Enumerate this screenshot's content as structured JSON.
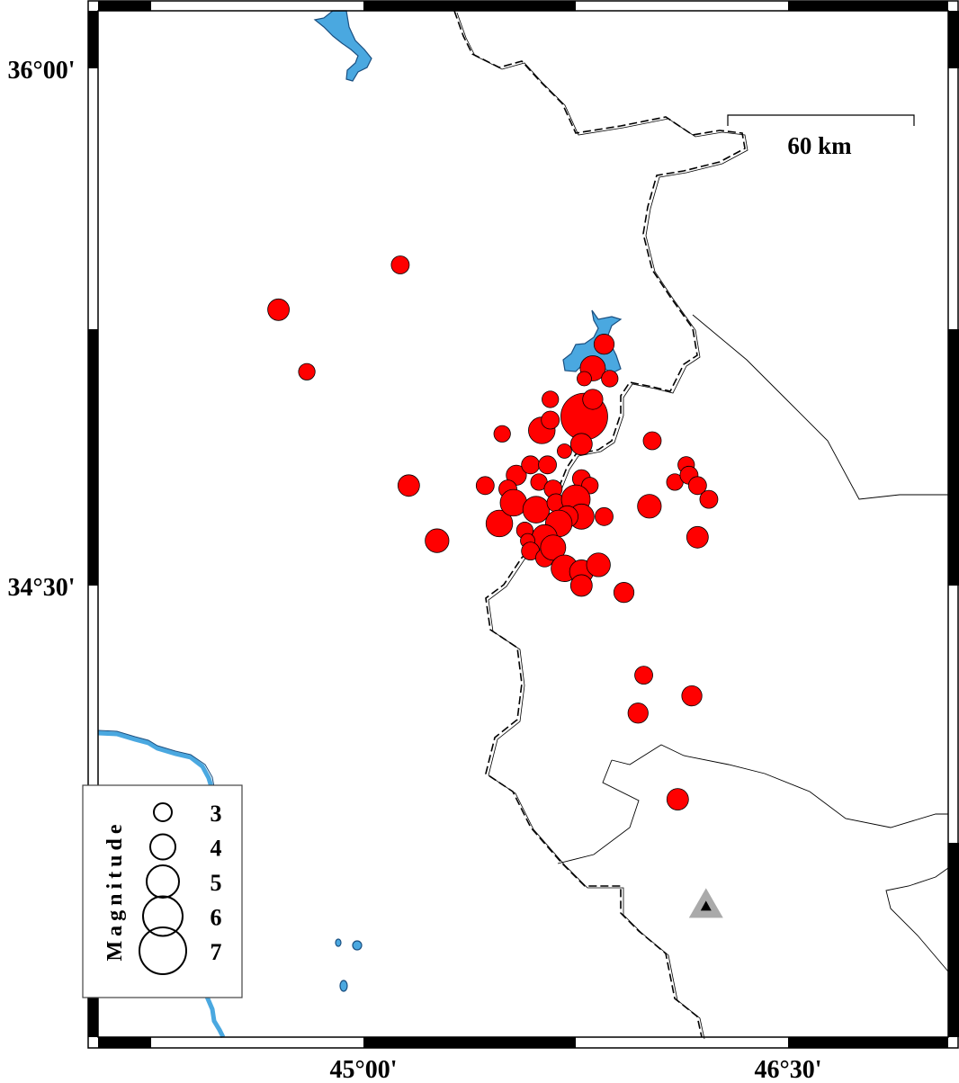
{
  "map": {
    "lon_range": [
      44.0625,
      47.0
    ],
    "lat_range": [
      33.19,
      36.17
    ],
    "axis_ticks": {
      "lon": [
        {
          "value": 45.0,
          "label": "45°00'"
        },
        {
          "value": 46.5,
          "label": "46°30'"
        }
      ],
      "lat": [
        {
          "value": 36.0,
          "label": "36°00'"
        },
        {
          "value": 34.5,
          "label": "34°30'"
        }
      ]
    },
    "scale_bar": {
      "label": "60 km",
      "length_km": 60
    },
    "colors": {
      "event_fill": "#ff0000",
      "water": "#4aa8e0",
      "station": "#aaaaaa"
    },
    "legend": {
      "title": "Magnitude",
      "entries": [
        {
          "mag": 3,
          "label": "3"
        },
        {
          "mag": 4,
          "label": "4"
        },
        {
          "mag": 5,
          "label": "5"
        },
        {
          "mag": 6,
          "label": "6"
        },
        {
          "mag": 7,
          "label": "7"
        }
      ]
    },
    "station": {
      "lon": 46.21,
      "lat": 33.57,
      "icon": "triangle-icon"
    },
    "events": [
      {
        "lon": 45.13,
        "lat": 35.43,
        "mag": 3.0
      },
      {
        "lon": 44.7,
        "lat": 35.3,
        "mag": 3.5
      },
      {
        "lon": 44.8,
        "lat": 35.12,
        "mag": 2.8
      },
      {
        "lon": 45.16,
        "lat": 34.79,
        "mag": 3.5
      },
      {
        "lon": 45.26,
        "lat": 34.63,
        "mag": 3.8
      },
      {
        "lon": 45.49,
        "lat": 34.94,
        "mag": 2.8
      },
      {
        "lon": 45.43,
        "lat": 34.79,
        "mag": 3.0
      },
      {
        "lon": 45.48,
        "lat": 34.68,
        "mag": 4.2
      },
      {
        "lon": 45.63,
        "lat": 34.95,
        "mag": 4.2
      },
      {
        "lon": 45.66,
        "lat": 35.04,
        "mag": 2.8
      },
      {
        "lon": 45.66,
        "lat": 34.98,
        "mag": 3.0
      },
      {
        "lon": 45.54,
        "lat": 34.82,
        "mag": 3.3
      },
      {
        "lon": 45.51,
        "lat": 34.78,
        "mag": 3.0
      },
      {
        "lon": 45.53,
        "lat": 34.74,
        "mag": 4.2
      },
      {
        "lon": 45.59,
        "lat": 34.85,
        "mag": 3.0
      },
      {
        "lon": 45.65,
        "lat": 34.85,
        "mag": 3.0
      },
      {
        "lon": 45.62,
        "lat": 34.8,
        "mag": 2.8
      },
      {
        "lon": 45.67,
        "lat": 34.78,
        "mag": 3.0
      },
      {
        "lon": 45.61,
        "lat": 34.72,
        "mag": 4.2
      },
      {
        "lon": 45.68,
        "lat": 34.74,
        "mag": 3.0
      },
      {
        "lon": 45.71,
        "lat": 34.89,
        "mag": 2.5
      },
      {
        "lon": 45.77,
        "lat": 34.81,
        "mag": 3.0
      },
      {
        "lon": 45.8,
        "lat": 34.79,
        "mag": 2.8
      },
      {
        "lon": 45.75,
        "lat": 34.75,
        "mag": 4.5
      },
      {
        "lon": 45.77,
        "lat": 34.7,
        "mag": 4.0
      },
      {
        "lon": 45.72,
        "lat": 34.7,
        "mag": 3.5
      },
      {
        "lon": 45.69,
        "lat": 34.68,
        "mag": 4.2
      },
      {
        "lon": 45.85,
        "lat": 34.7,
        "mag": 3.0
      },
      {
        "lon": 45.64,
        "lat": 34.64,
        "mag": 4.0
      },
      {
        "lon": 45.57,
        "lat": 34.66,
        "mag": 2.8
      },
      {
        "lon": 45.58,
        "lat": 34.63,
        "mag": 2.5
      },
      {
        "lon": 45.59,
        "lat": 34.6,
        "mag": 3.0
      },
      {
        "lon": 45.64,
        "lat": 34.58,
        "mag": 3.0
      },
      {
        "lon": 45.67,
        "lat": 34.61,
        "mag": 4.0
      },
      {
        "lon": 45.71,
        "lat": 34.55,
        "mag": 4.2
      },
      {
        "lon": 45.77,
        "lat": 34.54,
        "mag": 3.8
      },
      {
        "lon": 45.83,
        "lat": 34.56,
        "mag": 3.8
      },
      {
        "lon": 45.77,
        "lat": 34.5,
        "mag": 3.5
      },
      {
        "lon": 45.92,
        "lat": 34.48,
        "mag": 3.3
      },
      {
        "lon": 45.78,
        "lat": 34.99,
        "mag": 7.0
      },
      {
        "lon": 45.81,
        "lat": 35.04,
        "mag": 3.3
      },
      {
        "lon": 45.81,
        "lat": 35.13,
        "mag": 4.0
      },
      {
        "lon": 45.78,
        "lat": 35.1,
        "mag": 2.5
      },
      {
        "lon": 45.87,
        "lat": 35.1,
        "mag": 2.8
      },
      {
        "lon": 45.85,
        "lat": 35.2,
        "mag": 3.3
      },
      {
        "lon": 45.77,
        "lat": 34.91,
        "mag": 3.5
      },
      {
        "lon": 46.02,
        "lat": 34.92,
        "mag": 3.0
      },
      {
        "lon": 46.01,
        "lat": 34.73,
        "mag": 3.8
      },
      {
        "lon": 46.14,
        "lat": 34.85,
        "mag": 2.8
      },
      {
        "lon": 46.1,
        "lat": 34.8,
        "mag": 2.8
      },
      {
        "lon": 46.15,
        "lat": 34.82,
        "mag": 3.0
      },
      {
        "lon": 46.18,
        "lat": 34.79,
        "mag": 3.0
      },
      {
        "lon": 46.22,
        "lat": 34.75,
        "mag": 3.0
      },
      {
        "lon": 46.18,
        "lat": 34.64,
        "mag": 3.5
      },
      {
        "lon": 45.99,
        "lat": 34.24,
        "mag": 3.0
      },
      {
        "lon": 46.16,
        "lat": 34.18,
        "mag": 3.3
      },
      {
        "lon": 45.97,
        "lat": 34.13,
        "mag": 3.3
      },
      {
        "lon": 46.11,
        "lat": 33.88,
        "mag": 3.5
      }
    ]
  }
}
